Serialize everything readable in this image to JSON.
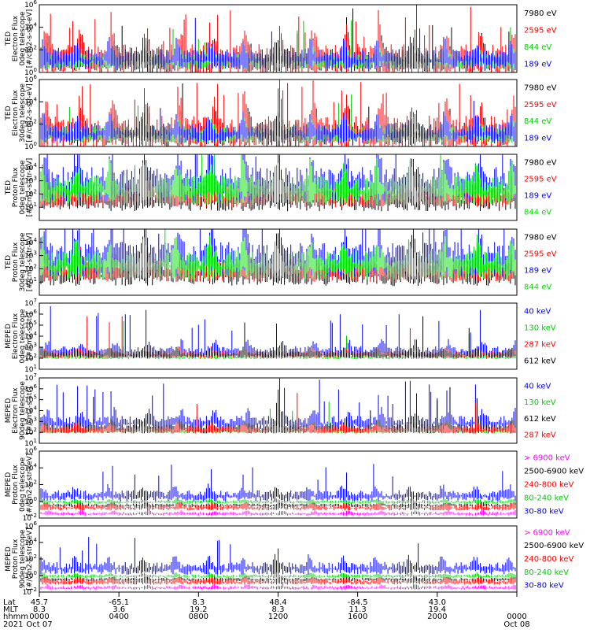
{
  "figure": {
    "time_axis": {
      "row_labels": [
        "Lat",
        "MLT",
        "hhmm",
        "2021"
      ],
      "ticks": [
        {
          "lat": "45.7",
          "mlt": "8.3",
          "hhmm": "0000",
          "date": "Oct 07"
        },
        {
          "lat": "-65.1",
          "mlt": "3.6",
          "hhmm": "0400",
          "date": ""
        },
        {
          "lat": "8.3",
          "mlt": "19.2",
          "hhmm": "0800",
          "date": ""
        },
        {
          "lat": "48.4",
          "mlt": "8.3",
          "hhmm": "1200",
          "date": ""
        },
        {
          "lat": "-84.5",
          "mlt": "11.3",
          "hhmm": "1600",
          "date": ""
        },
        {
          "lat": "43.0",
          "mlt": "19.4",
          "hhmm": "2000",
          "date": ""
        },
        {
          "lat": "",
          "mlt": "",
          "hhmm": "0000",
          "date": "Oct 08"
        }
      ]
    }
  },
  "chart_data": [
    {
      "type": "line",
      "ylabel_lines": [
        "TED",
        "Electron Flux",
        "0deg telescope",
        "[#/cm2-s-str-eV]"
      ],
      "y_scale": "log",
      "ylim": [
        1,
        1000000
      ],
      "ytick_exponents": [
        0,
        2,
        4,
        6
      ],
      "xlim_hours": [
        0,
        24
      ],
      "legend_placement": "right",
      "series": [
        {
          "name": "7980 eV",
          "color": "#000000",
          "level": 1.0,
          "variability": 1.0,
          "spikes": 0.02
        },
        {
          "name": "2595 eV",
          "color": "#ff0000",
          "level": 1.0,
          "variability": 1.3,
          "spikes": 0.06
        },
        {
          "name": "844 eV",
          "color": "#00cc00",
          "level": 0.9,
          "variability": 0.6,
          "spikes": 0.01
        },
        {
          "name": "189 eV",
          "color": "#0000ff",
          "level": 1.1,
          "variability": 0.8,
          "spikes": 0.01
        }
      ]
    },
    {
      "type": "line",
      "ylabel_lines": [
        "TED",
        "Electron Flux",
        "30deg telescope",
        "[#/cm2-s-str-eV]"
      ],
      "y_scale": "log",
      "ylim": [
        1,
        1000000
      ],
      "ytick_exponents": [
        0,
        2,
        4,
        6
      ],
      "xlim_hours": [
        0,
        24
      ],
      "legend_placement": "right",
      "series": [
        {
          "name": "7980 eV",
          "color": "#000000",
          "level": 1.0,
          "variability": 1.0,
          "spikes": 0.02
        },
        {
          "name": "2595 eV",
          "color": "#ff0000",
          "level": 1.1,
          "variability": 1.4,
          "spikes": 0.06
        },
        {
          "name": "844 eV",
          "color": "#00cc00",
          "level": 1.0,
          "variability": 0.7,
          "spikes": 0.01
        },
        {
          "name": "189 eV",
          "color": "#0000ff",
          "level": 1.1,
          "variability": 0.8,
          "spikes": 0.01
        }
      ]
    },
    {
      "type": "line",
      "ylabel_lines": [
        "TED",
        "Proton Flux",
        "0deg telescope",
        "[#/cm2-s-str-eV]"
      ],
      "y_scale": "log",
      "ylim": [
        1,
        100000
      ],
      "ytick_exponents": [
        1,
        2,
        3,
        4
      ],
      "xlim_hours": [
        0,
        24
      ],
      "legend_placement": "right",
      "series": [
        {
          "name": "7980 eV",
          "color": "#000000",
          "level": 1.5,
          "variability": 0.8,
          "spikes": 0.0
        },
        {
          "name": "2595 eV",
          "color": "#ff0000",
          "level": 1.8,
          "variability": 0.8,
          "spikes": 0.0
        },
        {
          "name": "189 eV",
          "color": "#0000ff",
          "level": 2.6,
          "variability": 1.2,
          "spikes": 0.05
        },
        {
          "name": "844 eV",
          "color": "#00e000",
          "level": 2.2,
          "variability": 1.0,
          "spikes": 0.01
        }
      ]
    },
    {
      "type": "line",
      "ylabel_lines": [
        "TED",
        "Proton Flux",
        "30deg telescope",
        "[#/cm2-s-str-eV]"
      ],
      "y_scale": "log",
      "ylim": [
        1,
        100000
      ],
      "ytick_exponents": [
        1,
        2,
        3,
        4
      ],
      "xlim_hours": [
        0,
        24
      ],
      "legend_placement": "right",
      "series": [
        {
          "name": "7980 eV",
          "color": "#000000",
          "level": 1.5,
          "variability": 0.8,
          "spikes": 0.0
        },
        {
          "name": "2595 eV",
          "color": "#ff0000",
          "level": 1.8,
          "variability": 0.8,
          "spikes": 0.0
        },
        {
          "name": "189 eV",
          "color": "#0000ff",
          "level": 2.6,
          "variability": 1.2,
          "spikes": 0.05
        },
        {
          "name": "844 eV",
          "color": "#00e000",
          "level": 2.2,
          "variability": 1.0,
          "spikes": 0.01
        }
      ]
    },
    {
      "type": "line",
      "ylabel_lines": [
        "MEPED",
        "Electron Flux",
        "0deg telescope",
        "[#/cm2-s-str]"
      ],
      "y_scale": "log",
      "ylim": [
        10,
        10000000
      ],
      "ytick_exponents": [
        1,
        2,
        3,
        4,
        5,
        6,
        7
      ],
      "xlim_hours": [
        0,
        24
      ],
      "legend_placement": "right",
      "series": [
        {
          "name": "40 keV",
          "color": "#0000ff",
          "level": 2.5,
          "variability": 0.5,
          "spikes": 0.06
        },
        {
          "name": "130 keV",
          "color": "#00cc00",
          "level": 2.1,
          "variability": 0.2,
          "spikes": 0.01
        },
        {
          "name": "287 keV",
          "color": "#ff0000",
          "level": 2.3,
          "variability": 0.3,
          "spikes": 0.01
        },
        {
          "name": "612 keV",
          "color": "#000000",
          "level": 2.3,
          "variability": 0.3,
          "spikes": 0.01
        }
      ]
    },
    {
      "type": "line",
      "ylabel_lines": [
        "MEPED",
        "Electron Flux",
        "90deg telescope",
        "[#/cm2-s-str]"
      ],
      "y_scale": "log",
      "ylim": [
        10,
        10000000
      ],
      "ytick_exponents": [
        1,
        2,
        3,
        4,
        5,
        6,
        7
      ],
      "xlim_hours": [
        0,
        24
      ],
      "legend_placement": "right",
      "series": [
        {
          "name": "40 keV",
          "color": "#0000ff",
          "level": 2.8,
          "variability": 0.6,
          "spikes": 0.06
        },
        {
          "name": "130 keV",
          "color": "#00cc00",
          "level": 2.1,
          "variability": 0.2,
          "spikes": 0.01
        },
        {
          "name": "612 keV",
          "color": "#000000",
          "level": 2.3,
          "variability": 0.4,
          "spikes": 0.01
        },
        {
          "name": "287 keV",
          "color": "#ff0000",
          "level": 2.2,
          "variability": 0.3,
          "spikes": 0.01
        }
      ]
    },
    {
      "type": "line",
      "ylabel_lines": [
        "MEPED",
        "Proton Flux",
        "0deg telescope",
        "[#/cm2-s-str-keV]"
      ],
      "y_scale": "log",
      "ylim": [
        0.01,
        1000000
      ],
      "ytick_exponents": [
        -2,
        0,
        2,
        4,
        6
      ],
      "xlim_hours": [
        0,
        24
      ],
      "legend_placement": "right",
      "series": [
        {
          "name": "> 6900 keV",
          "color": "#ff00ff",
          "level": -1.5,
          "variability": 0.2,
          "spikes": 0.0
        },
        {
          "name": "2500-6900 keV",
          "color": "#000000",
          "level": -0.5,
          "variability": 0.2,
          "spikes": 0.0
        },
        {
          "name": "240-800 keV",
          "color": "#ff0000",
          "level": -0.8,
          "variability": 0.3,
          "spikes": 0.0
        },
        {
          "name": "80-240 keV",
          "color": "#00cc00",
          "level": -0.1,
          "variability": 0.2,
          "spikes": 0.0
        },
        {
          "name": "30-80 keV",
          "color": "#0000ff",
          "level": 0.6,
          "variability": 0.6,
          "spikes": 0.05
        }
      ]
    },
    {
      "type": "line",
      "ylabel_lines": [
        "MEPED",
        "Proton Flux",
        "90deg telescope",
        "[#/cm2-s-str-keV]"
      ],
      "y_scale": "log",
      "ylim": [
        0.01,
        1000000
      ],
      "ytick_exponents": [
        -2,
        0,
        2,
        4,
        6
      ],
      "xlim_hours": [
        0,
        24
      ],
      "legend_placement": "right",
      "series": [
        {
          "name": "> 6900 keV",
          "color": "#ff00ff",
          "level": -1.5,
          "variability": 0.2,
          "spikes": 0.0
        },
        {
          "name": "2500-6900 keV",
          "color": "#000000",
          "level": -0.5,
          "variability": 0.2,
          "spikes": 0.0
        },
        {
          "name": "240-800 keV",
          "color": "#ff0000",
          "level": -0.8,
          "variability": 0.3,
          "spikes": 0.0
        },
        {
          "name": "80-240 keV",
          "color": "#00cc00",
          "level": -0.1,
          "variability": 0.2,
          "spikes": 0.0
        },
        {
          "name": "30-80 keV",
          "color": "#0000ff",
          "level": 0.8,
          "variability": 0.7,
          "spikes": 0.05
        }
      ]
    }
  ]
}
